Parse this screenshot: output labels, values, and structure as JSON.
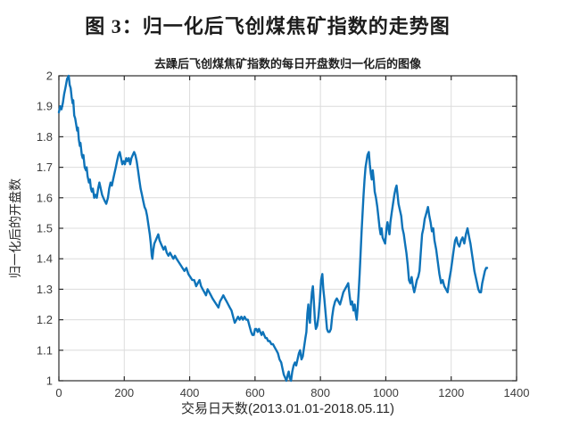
{
  "figure": {
    "title": "图 3：归一化后飞创煤焦矿指数的走势图"
  },
  "chart_data": {
    "type": "line",
    "title": "去躁后飞创煤焦矿指数的每日开盘数归一化后的图像",
    "xlabel": "交易日天数(2013.01.01-2018.05.11)",
    "ylabel": "归一化后的开盘数",
    "xlim": [
      0,
      1400
    ],
    "ylim": [
      1,
      2
    ],
    "xticks": [
      "0",
      "200",
      "400",
      "600",
      "800",
      "1000",
      "1200",
      "1400"
    ],
    "yticks": [
      "1",
      "1.1",
      "1.2",
      "1.3",
      "1.4",
      "1.5",
      "1.6",
      "1.7",
      "1.8",
      "1.9",
      "2"
    ],
    "grid": true,
    "legend": "none",
    "line_color": "#0E73B9",
    "axis_color": "#2b2b2b",
    "grid_color": "#dcdcdc",
    "tick_label_color": "#3c3c3c",
    "series": [
      {
        "name": "归一化后的开盘数",
        "points": [
          [
            0,
            1.88
          ],
          [
            4,
            1.9
          ],
          [
            8,
            1.89
          ],
          [
            12,
            1.91
          ],
          [
            16,
            1.94
          ],
          [
            20,
            1.96
          ],
          [
            25,
            1.99
          ],
          [
            30,
            2.0
          ],
          [
            33,
            1.97
          ],
          [
            36,
            1.96
          ],
          [
            39,
            1.93
          ],
          [
            42,
            1.91
          ],
          [
            44,
            1.92
          ],
          [
            47,
            1.87
          ],
          [
            50,
            1.86
          ],
          [
            53,
            1.84
          ],
          [
            56,
            1.82
          ],
          [
            58,
            1.83
          ],
          [
            61,
            1.79
          ],
          [
            64,
            1.77
          ],
          [
            66,
            1.78
          ],
          [
            70,
            1.74
          ],
          [
            73,
            1.73
          ],
          [
            75,
            1.74
          ],
          [
            79,
            1.7
          ],
          [
            83,
            1.69
          ],
          [
            85,
            1.7
          ],
          [
            88,
            1.67
          ],
          [
            92,
            1.65
          ],
          [
            95,
            1.66
          ],
          [
            98,
            1.63
          ],
          [
            101,
            1.62
          ],
          [
            104,
            1.63
          ],
          [
            108,
            1.6
          ],
          [
            112,
            1.61
          ],
          [
            116,
            1.6
          ],
          [
            120,
            1.63
          ],
          [
            124,
            1.65
          ],
          [
            128,
            1.63
          ],
          [
            132,
            1.61
          ],
          [
            136,
            1.6
          ],
          [
            140,
            1.59
          ],
          [
            145,
            1.58
          ],
          [
            150,
            1.6
          ],
          [
            154,
            1.63
          ],
          [
            158,
            1.65
          ],
          [
            162,
            1.64
          ],
          [
            166,
            1.66
          ],
          [
            170,
            1.68
          ],
          [
            174,
            1.7
          ],
          [
            178,
            1.72
          ],
          [
            182,
            1.74
          ],
          [
            186,
            1.75
          ],
          [
            190,
            1.73
          ],
          [
            194,
            1.71
          ],
          [
            198,
            1.72
          ],
          [
            202,
            1.71
          ],
          [
            206,
            1.73
          ],
          [
            210,
            1.72
          ],
          [
            214,
            1.73
          ],
          [
            218,
            1.71
          ],
          [
            222,
            1.73
          ],
          [
            226,
            1.74
          ],
          [
            230,
            1.75
          ],
          [
            234,
            1.74
          ],
          [
            238,
            1.72
          ],
          [
            242,
            1.69
          ],
          [
            246,
            1.66
          ],
          [
            250,
            1.63
          ],
          [
            254,
            1.61
          ],
          [
            258,
            1.59
          ],
          [
            262,
            1.57
          ],
          [
            266,
            1.56
          ],
          [
            270,
            1.54
          ],
          [
            274,
            1.51
          ],
          [
            278,
            1.48
          ],
          [
            281,
            1.45
          ],
          [
            284,
            1.41
          ],
          [
            286,
            1.4
          ],
          [
            289,
            1.43
          ],
          [
            292,
            1.45
          ],
          [
            296,
            1.46
          ],
          [
            300,
            1.47
          ],
          [
            304,
            1.48
          ],
          [
            308,
            1.46
          ],
          [
            312,
            1.45
          ],
          [
            316,
            1.44
          ],
          [
            320,
            1.43
          ],
          [
            325,
            1.44
          ],
          [
            330,
            1.42
          ],
          [
            335,
            1.41
          ],
          [
            340,
            1.42
          ],
          [
            345,
            1.41
          ],
          [
            350,
            1.4
          ],
          [
            355,
            1.41
          ],
          [
            360,
            1.4
          ],
          [
            366,
            1.39
          ],
          [
            372,
            1.38
          ],
          [
            378,
            1.37
          ],
          [
            384,
            1.36
          ],
          [
            390,
            1.37
          ],
          [
            396,
            1.35
          ],
          [
            402,
            1.34
          ],
          [
            408,
            1.33
          ],
          [
            414,
            1.33
          ],
          [
            420,
            1.31
          ],
          [
            425,
            1.32
          ],
          [
            430,
            1.33
          ],
          [
            435,
            1.31
          ],
          [
            440,
            1.3
          ],
          [
            445,
            1.29
          ],
          [
            450,
            1.28
          ],
          [
            455,
            1.3
          ],
          [
            460,
            1.29
          ],
          [
            465,
            1.28
          ],
          [
            470,
            1.27
          ],
          [
            476,
            1.26
          ],
          [
            482,
            1.25
          ],
          [
            488,
            1.24
          ],
          [
            493,
            1.26
          ],
          [
            498,
            1.27
          ],
          [
            503,
            1.28
          ],
          [
            508,
            1.27
          ],
          [
            513,
            1.26
          ],
          [
            518,
            1.25
          ],
          [
            523,
            1.24
          ],
          [
            528,
            1.23
          ],
          [
            533,
            1.21
          ],
          [
            538,
            1.19
          ],
          [
            543,
            1.2
          ],
          [
            548,
            1.21
          ],
          [
            553,
            1.2
          ],
          [
            558,
            1.21
          ],
          [
            563,
            1.2
          ],
          [
            568,
            1.21
          ],
          [
            573,
            1.2
          ],
          [
            578,
            1.2
          ],
          [
            583,
            1.18
          ],
          [
            588,
            1.16
          ],
          [
            592,
            1.15
          ],
          [
            596,
            1.15
          ],
          [
            600,
            1.17
          ],
          [
            604,
            1.17
          ],
          [
            608,
            1.16
          ],
          [
            612,
            1.17
          ],
          [
            616,
            1.16
          ],
          [
            620,
            1.15
          ],
          [
            624,
            1.16
          ],
          [
            628,
            1.15
          ],
          [
            632,
            1.14
          ],
          [
            636,
            1.14
          ],
          [
            640,
            1.13
          ],
          [
            645,
            1.13
          ],
          [
            650,
            1.12
          ],
          [
            655,
            1.12
          ],
          [
            660,
            1.11
          ],
          [
            665,
            1.1
          ],
          [
            670,
            1.09
          ],
          [
            675,
            1.07
          ],
          [
            680,
            1.06
          ],
          [
            684,
            1.04
          ],
          [
            688,
            1.02
          ],
          [
            692,
            1.01
          ],
          [
            696,
            1.0
          ],
          [
            700,
            1.02
          ],
          [
            703,
            1.03
          ],
          [
            706,
            1.01
          ],
          [
            710,
            1.0
          ],
          [
            714,
            1.03
          ],
          [
            718,
            1.05
          ],
          [
            722,
            1.06
          ],
          [
            726,
            1.05
          ],
          [
            730,
            1.07
          ],
          [
            734,
            1.09
          ],
          [
            738,
            1.1
          ],
          [
            742,
            1.07
          ],
          [
            746,
            1.08
          ],
          [
            750,
            1.11
          ],
          [
            754,
            1.14
          ],
          [
            757,
            1.16
          ],
          [
            760,
            1.22
          ],
          [
            763,
            1.25
          ],
          [
            765,
            1.21
          ],
          [
            768,
            1.19
          ],
          [
            771,
            1.25
          ],
          [
            774,
            1.29
          ],
          [
            777,
            1.31
          ],
          [
            780,
            1.26
          ],
          [
            783,
            1.2
          ],
          [
            786,
            1.17
          ],
          [
            790,
            1.18
          ],
          [
            794,
            1.21
          ],
          [
            798,
            1.26
          ],
          [
            802,
            1.33
          ],
          [
            806,
            1.35
          ],
          [
            809,
            1.3
          ],
          [
            812,
            1.27
          ],
          [
            816,
            1.22
          ],
          [
            820,
            1.17
          ],
          [
            824,
            1.16
          ],
          [
            828,
            1.16
          ],
          [
            832,
            1.17
          ],
          [
            836,
            1.21
          ],
          [
            840,
            1.24
          ],
          [
            845,
            1.26
          ],
          [
            850,
            1.27
          ],
          [
            855,
            1.26
          ],
          [
            860,
            1.25
          ],
          [
            865,
            1.27
          ],
          [
            870,
            1.29
          ],
          [
            875,
            1.3
          ],
          [
            880,
            1.31
          ],
          [
            885,
            1.32
          ],
          [
            889,
            1.28
          ],
          [
            893,
            1.25
          ],
          [
            897,
            1.26
          ],
          [
            901,
            1.23
          ],
          [
            905,
            1.25
          ],
          [
            908,
            1.22
          ],
          [
            911,
            1.2
          ],
          [
            914,
            1.24
          ],
          [
            917,
            1.29
          ],
          [
            920,
            1.35
          ],
          [
            923,
            1.42
          ],
          [
            926,
            1.49
          ],
          [
            929,
            1.55
          ],
          [
            932,
            1.61
          ],
          [
            935,
            1.66
          ],
          [
            938,
            1.7
          ],
          [
            941,
            1.72
          ],
          [
            944,
            1.74
          ],
          [
            948,
            1.75
          ],
          [
            951,
            1.71
          ],
          [
            954,
            1.68
          ],
          [
            957,
            1.66
          ],
          [
            960,
            1.69
          ],
          [
            963,
            1.66
          ],
          [
            966,
            1.62
          ],
          [
            970,
            1.6
          ],
          [
            974,
            1.57
          ],
          [
            978,
            1.53
          ],
          [
            981,
            1.5
          ],
          [
            984,
            1.48
          ],
          [
            987,
            1.5
          ],
          [
            990,
            1.47
          ],
          [
            994,
            1.46
          ],
          [
            998,
            1.45
          ],
          [
            1002,
            1.5
          ],
          [
            1005,
            1.52
          ],
          [
            1008,
            1.5
          ],
          [
            1011,
            1.48
          ],
          [
            1014,
            1.52
          ],
          [
            1018,
            1.55
          ],
          [
            1022,
            1.58
          ],
          [
            1026,
            1.61
          ],
          [
            1030,
            1.63
          ],
          [
            1033,
            1.64
          ],
          [
            1036,
            1.61
          ],
          [
            1039,
            1.58
          ],
          [
            1043,
            1.56
          ],
          [
            1047,
            1.54
          ],
          [
            1051,
            1.5
          ],
          [
            1055,
            1.48
          ],
          [
            1059,
            1.45
          ],
          [
            1063,
            1.42
          ],
          [
            1067,
            1.38
          ],
          [
            1071,
            1.33
          ],
          [
            1075,
            1.32
          ],
          [
            1079,
            1.34
          ],
          [
            1083,
            1.31
          ],
          [
            1087,
            1.29
          ],
          [
            1091,
            1.31
          ],
          [
            1095,
            1.33
          ],
          [
            1099,
            1.34
          ],
          [
            1103,
            1.36
          ],
          [
            1107,
            1.42
          ],
          [
            1111,
            1.48
          ],
          [
            1115,
            1.5
          ],
          [
            1119,
            1.53
          ],
          [
            1124,
            1.55
          ],
          [
            1129,
            1.57
          ],
          [
            1133,
            1.54
          ],
          [
            1137,
            1.52
          ],
          [
            1141,
            1.49
          ],
          [
            1145,
            1.5
          ],
          [
            1149,
            1.46
          ],
          [
            1154,
            1.43
          ],
          [
            1159,
            1.39
          ],
          [
            1164,
            1.35
          ],
          [
            1169,
            1.32
          ],
          [
            1174,
            1.33
          ],
          [
            1179,
            1.31
          ],
          [
            1184,
            1.3
          ],
          [
            1189,
            1.29
          ],
          [
            1194,
            1.33
          ],
          [
            1199,
            1.36
          ],
          [
            1204,
            1.4
          ],
          [
            1208,
            1.43
          ],
          [
            1212,
            1.46
          ],
          [
            1216,
            1.47
          ],
          [
            1220,
            1.45
          ],
          [
            1225,
            1.44
          ],
          [
            1230,
            1.46
          ],
          [
            1235,
            1.47
          ],
          [
            1240,
            1.45
          ],
          [
            1245,
            1.48
          ],
          [
            1250,
            1.5
          ],
          [
            1255,
            1.47
          ],
          [
            1259,
            1.45
          ],
          [
            1263,
            1.42
          ],
          [
            1267,
            1.39
          ],
          [
            1271,
            1.36
          ],
          [
            1275,
            1.34
          ],
          [
            1279,
            1.32
          ],
          [
            1283,
            1.3
          ],
          [
            1287,
            1.29
          ],
          [
            1291,
            1.29
          ],
          [
            1295,
            1.32
          ],
          [
            1299,
            1.34
          ],
          [
            1303,
            1.36
          ],
          [
            1307,
            1.37
          ],
          [
            1310,
            1.37
          ]
        ]
      }
    ]
  }
}
